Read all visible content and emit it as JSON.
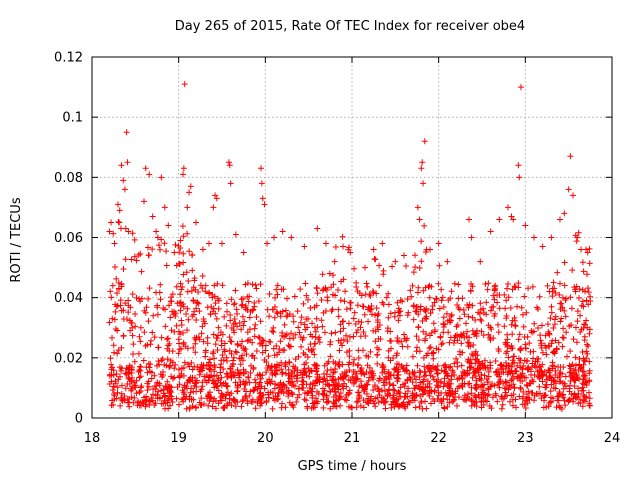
{
  "chart_data": {
    "type": "scatter",
    "title": "Day 265 of 2015, Rate Of TEC Index for receiver obe4",
    "xlabel": "GPS time / hours",
    "ylabel": "ROTI / TECUs",
    "xlim": [
      18,
      24
    ],
    "ylim": [
      0,
      0.12
    ],
    "x_ticks": [
      18,
      19,
      20,
      21,
      22,
      23,
      24
    ],
    "y_ticks": [
      0,
      0.02,
      0.04,
      0.06,
      0.08,
      0.1,
      0.12
    ],
    "x_tick_labels": [
      "18",
      "19",
      "20",
      "21",
      "22",
      "23",
      "24"
    ],
    "y_tick_labels": [
      "0",
      "0.02",
      "0.04",
      "0.06",
      "0.08",
      "0.1",
      "0.12"
    ],
    "grid": true,
    "marker": "+",
    "marker_color": "#ff0000",
    "series": [
      {
        "name": "ROTI",
        "points": [
          [
            18.22,
            0.065
          ],
          [
            18.24,
            0.044
          ],
          [
            18.26,
            0.058
          ],
          [
            18.3,
            0.071
          ],
          [
            18.32,
            0.069
          ],
          [
            18.34,
            0.084
          ],
          [
            18.36,
            0.079
          ],
          [
            18.38,
            0.076
          ],
          [
            18.4,
            0.095
          ],
          [
            18.41,
            0.085
          ],
          [
            18.39,
            0.063
          ],
          [
            18.42,
            0.062
          ],
          [
            18.6,
            0.072
          ],
          [
            18.62,
            0.083
          ],
          [
            18.66,
            0.081
          ],
          [
            18.7,
            0.067
          ],
          [
            18.74,
            0.062
          ],
          [
            18.76,
            0.06
          ],
          [
            18.8,
            0.08
          ],
          [
            18.84,
            0.07
          ],
          [
            18.88,
            0.064
          ],
          [
            18.95,
            0.055
          ],
          [
            19.02,
            0.059
          ],
          [
            19.05,
            0.081
          ],
          [
            19.06,
            0.083
          ],
          [
            19.07,
            0.111
          ],
          [
            19.1,
            0.07
          ],
          [
            19.12,
            0.075
          ],
          [
            19.14,
            0.077
          ],
          [
            19.2,
            0.065
          ],
          [
            19.28,
            0.056
          ],
          [
            19.35,
            0.058
          ],
          [
            19.4,
            0.07
          ],
          [
            19.42,
            0.074
          ],
          [
            19.44,
            0.073
          ],
          [
            19.5,
            0.058
          ],
          [
            19.58,
            0.085
          ],
          [
            19.59,
            0.084
          ],
          [
            19.6,
            0.078
          ],
          [
            19.66,
            0.061
          ],
          [
            19.75,
            0.055
          ],
          [
            19.95,
            0.083
          ],
          [
            19.96,
            0.078
          ],
          [
            19.97,
            0.073
          ],
          [
            19.99,
            0.071
          ],
          [
            20.02,
            0.058
          ],
          [
            20.1,
            0.06
          ],
          [
            20.2,
            0.062
          ],
          [
            20.3,
            0.06
          ],
          [
            20.45,
            0.057
          ],
          [
            20.6,
            0.063
          ],
          [
            20.7,
            0.058
          ],
          [
            20.8,
            0.052
          ],
          [
            20.98,
            0.055
          ],
          [
            21.15,
            0.05
          ],
          [
            21.25,
            0.056
          ],
          [
            21.35,
            0.058
          ],
          [
            21.5,
            0.052
          ],
          [
            21.6,
            0.054
          ],
          [
            21.76,
            0.07
          ],
          [
            21.78,
            0.066
          ],
          [
            21.8,
            0.083
          ],
          [
            21.81,
            0.085
          ],
          [
            21.82,
            0.078
          ],
          [
            21.84,
            0.092
          ],
          [
            21.9,
            0.056
          ],
          [
            22.0,
            0.058
          ],
          [
            22.1,
            0.052
          ],
          [
            22.35,
            0.066
          ],
          [
            22.38,
            0.06
          ],
          [
            22.48,
            0.052
          ],
          [
            22.6,
            0.062
          ],
          [
            22.7,
            0.066
          ],
          [
            22.8,
            0.07
          ],
          [
            22.84,
            0.067
          ],
          [
            22.86,
            0.066
          ],
          [
            22.92,
            0.084
          ],
          [
            22.93,
            0.08
          ],
          [
            22.95,
            0.11
          ],
          [
            23.0,
            0.064
          ],
          [
            23.1,
            0.06
          ],
          [
            23.2,
            0.057
          ],
          [
            23.3,
            0.06
          ],
          [
            23.4,
            0.066
          ],
          [
            23.45,
            0.068
          ],
          [
            23.5,
            0.076
          ],
          [
            23.52,
            0.087
          ],
          [
            23.55,
            0.074
          ],
          [
            23.6,
            0.06
          ],
          [
            23.7,
            0.056
          ],
          [
            23.72,
            0.055
          ]
        ]
      }
    ]
  }
}
